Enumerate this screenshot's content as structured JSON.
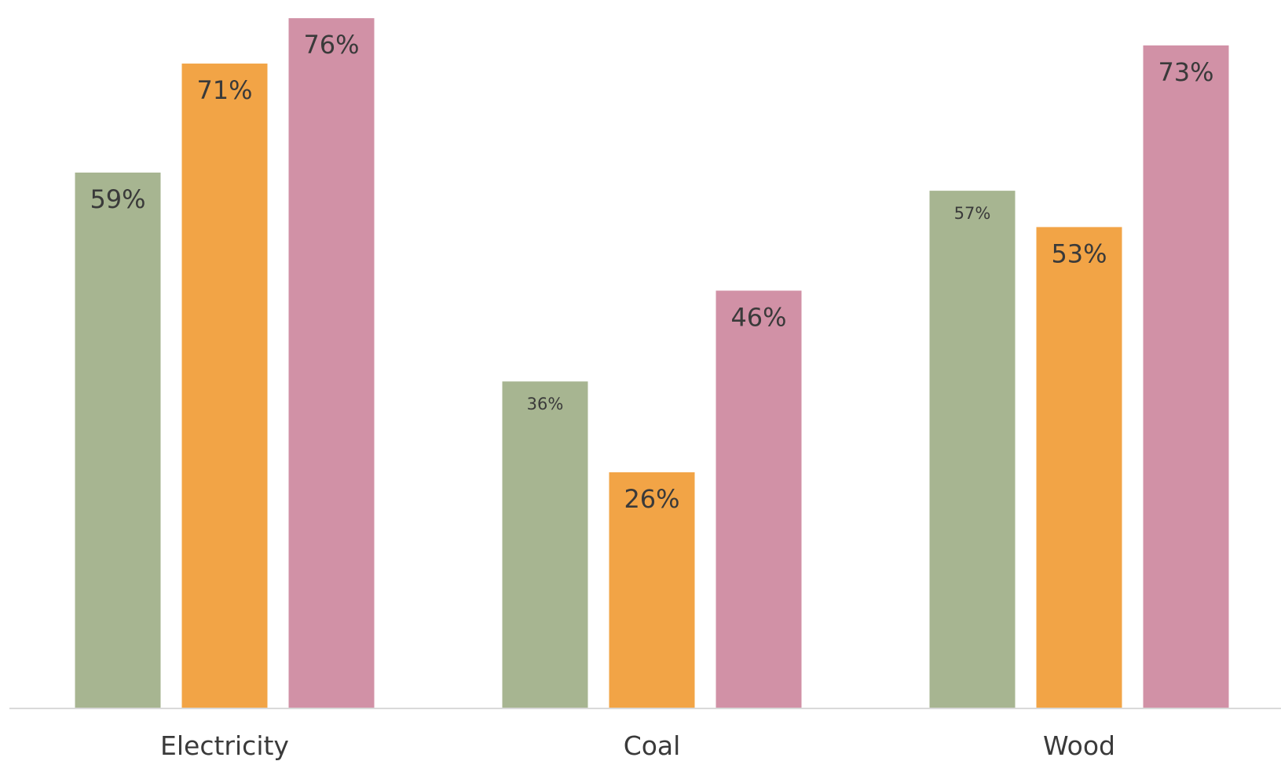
{
  "chart_data": {
    "type": "bar",
    "title": "",
    "xlabel": "",
    "ylabel": "",
    "categories": [
      "Electricity",
      "Coal",
      "Wood"
    ],
    "series": [
      {
        "values": [
          59,
          36,
          57
        ],
        "labels": [
          "59%",
          "36%",
          "57%"
        ],
        "color": "#a7b591"
      },
      {
        "values": [
          71,
          26,
          53
        ],
        "labels": [
          "71%",
          "26%",
          "53%"
        ],
        "color": "#f2a446"
      },
      {
        "values": [
          76,
          46,
          73
        ],
        "labels": [
          "76%",
          "46%",
          "73%"
        ],
        "color": "#d191a6"
      }
    ],
    "ylim": [
      0,
      78
    ],
    "y_axis_visible": false,
    "grid": false,
    "legend": "none",
    "colors": {
      "axis_line": "#d9d9d9",
      "text": "#3a3a3a"
    }
  }
}
